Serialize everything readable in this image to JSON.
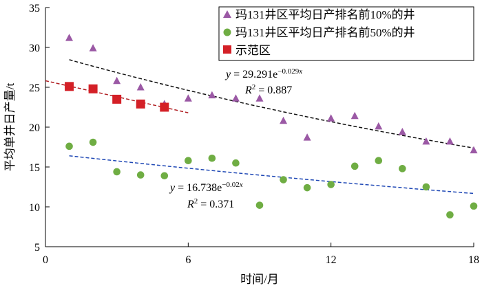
{
  "chart_data": {
    "type": "scatter",
    "xlabel": "时间/月",
    "ylabel": "平均单井日产量/t",
    "xlim": [
      0,
      18
    ],
    "ylim": [
      5,
      35
    ],
    "xticks": [
      0,
      6,
      12,
      18
    ],
    "yticks": [
      5,
      10,
      15,
      20,
      25,
      30,
      35
    ],
    "grid": false,
    "legend_position": "top-right",
    "series": [
      {
        "name": "玛131井区平均日产排名前10%的井",
        "marker": "triangle",
        "color": "#9b59a5",
        "x": [
          1,
          2,
          3,
          4,
          5,
          6,
          7,
          8,
          9,
          10,
          11,
          12,
          13,
          14,
          15,
          16,
          17,
          18
        ],
        "y": [
          31.2,
          29.9,
          25.8,
          25.0,
          22.9,
          23.6,
          24.0,
          23.6,
          23.6,
          20.8,
          18.7,
          21.1,
          21.4,
          20.1,
          19.4,
          18.2,
          18.2,
          17.1
        ]
      },
      {
        "name": "玛131井区平均日产排名前50%的井",
        "marker": "circle",
        "color": "#6fad43",
        "x": [
          1,
          2,
          3,
          4,
          5,
          6,
          7,
          8,
          9,
          10,
          11,
          12,
          13,
          14,
          15,
          16,
          17,
          18
        ],
        "y": [
          17.6,
          18.1,
          14.4,
          14.0,
          13.9,
          15.8,
          16.1,
          15.5,
          10.2,
          13.4,
          12.4,
          12.8,
          15.1,
          15.8,
          14.8,
          12.5,
          9.0,
          10.1
        ]
      },
      {
        "name": "示范区",
        "marker": "square",
        "color": "#d42027",
        "x": [
          1,
          2,
          3,
          4,
          5
        ],
        "y": [
          25.1,
          24.8,
          23.5,
          22.9,
          22.5
        ]
      }
    ],
    "trendlines": [
      {
        "series": 0,
        "color": "#111111",
        "a": 29.291,
        "b": -0.029,
        "x_range": [
          1,
          18
        ],
        "eq_y": "y",
        "eq_main": " = 29.291e",
        "eq_exp": "−0.029",
        "eq_x": "x",
        "r2_r": "R",
        "r2_sup": "2",
        "r2_val": " = 0.887"
      },
      {
        "series": 1,
        "color": "#1f48b5",
        "a": 16.738,
        "b": -0.02,
        "x_range": [
          1,
          18
        ],
        "eq_y": "y",
        "eq_main": " = 16.738e",
        "eq_exp": "−0.02",
        "eq_x": "x",
        "r2_r": "R",
        "r2_sup": "2",
        "r2_val": " = 0.371"
      },
      {
        "series": 2,
        "color": "#b01e22",
        "slope": -0.67,
        "intercept": 25.82,
        "x_range": [
          0,
          6
        ]
      }
    ]
  }
}
